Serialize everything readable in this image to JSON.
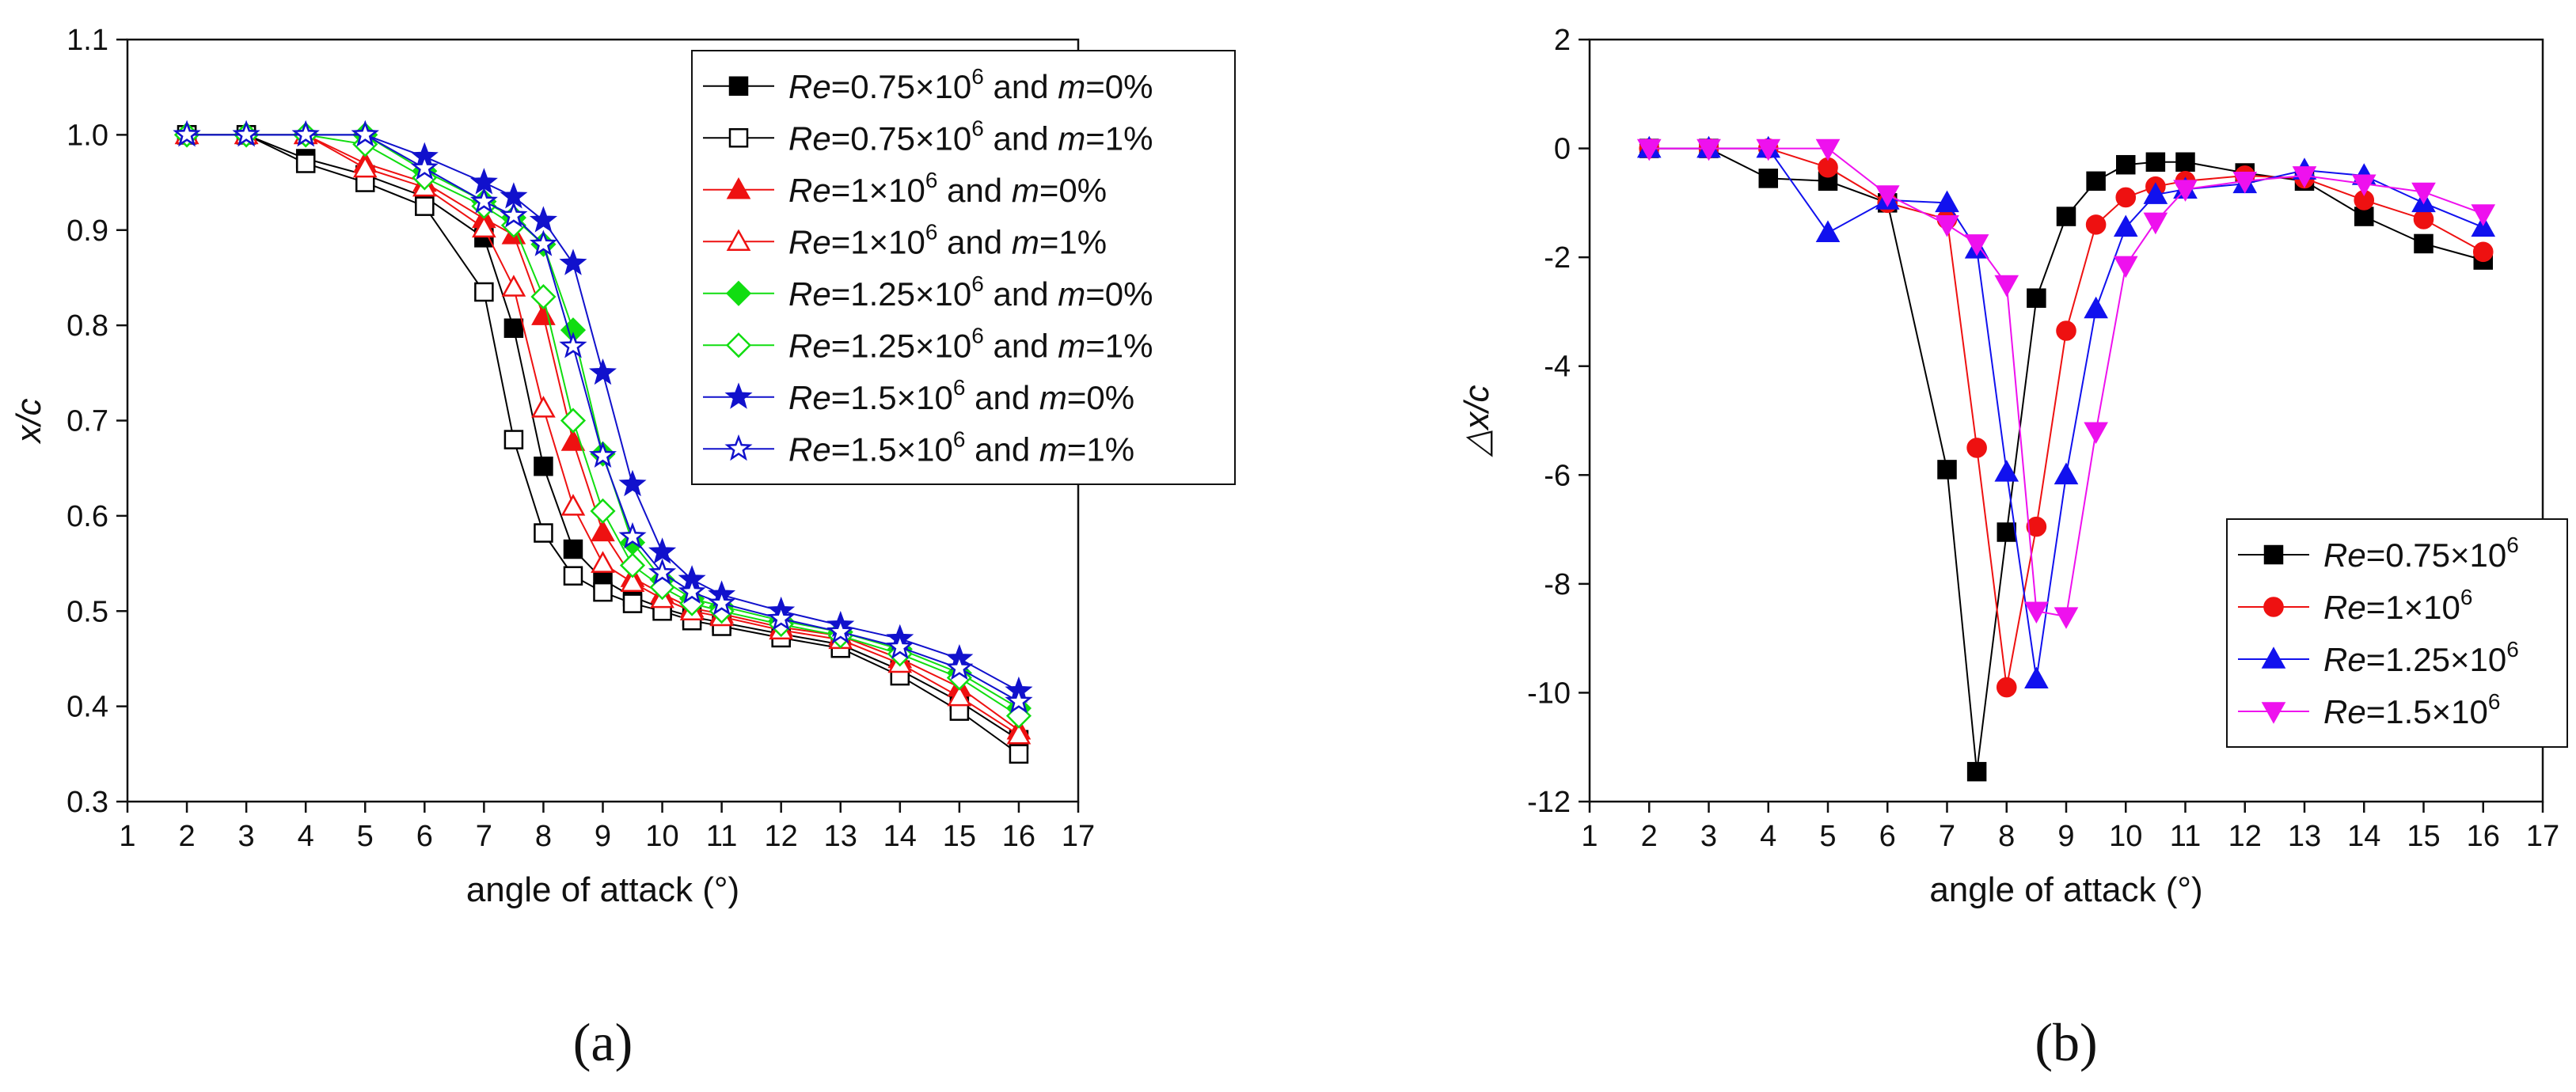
{
  "chart_data": [
    {
      "type": "line",
      "panel_label": "(a)",
      "xlabel": "angle of attack (°)",
      "ylabel": "x/c",
      "xlim": [
        1,
        17
      ],
      "ylim": [
        0.3,
        1.1
      ],
      "xticks": [
        1,
        2,
        3,
        4,
        5,
        6,
        7,
        8,
        9,
        10,
        11,
        12,
        13,
        14,
        15,
        16,
        17
      ],
      "yticks": [
        "0.3",
        "0.4",
        "0.5",
        "0.6",
        "0.7",
        "0.8",
        "0.9",
        "1.0",
        "1.1"
      ],
      "legend_position": "top-right",
      "series": [
        {
          "re": "0.75",
          "m": "0%",
          "color": "#000000",
          "marker": "square",
          "filled": true,
          "x": [
            2,
            3,
            4,
            5,
            6,
            7,
            7.5,
            8,
            8.5,
            9,
            9.5,
            10,
            10.5,
            11,
            12,
            13,
            14,
            15,
            16
          ],
          "y": [
            1.0,
            1.0,
            0.975,
            0.958,
            0.935,
            0.892,
            0.797,
            0.652,
            0.565,
            0.533,
            0.515,
            0.503,
            0.494,
            0.488,
            0.476,
            0.465,
            0.438,
            0.405,
            0.365
          ]
        },
        {
          "re": "0.75",
          "m": "1%",
          "color": "#000000",
          "marker": "square",
          "filled": false,
          "x": [
            2,
            3,
            4,
            5,
            6,
            7,
            7.5,
            8,
            8.5,
            9,
            9.5,
            10,
            10.5,
            11,
            12,
            13,
            14,
            15,
            16
          ],
          "y": [
            1.0,
            1.0,
            0.97,
            0.95,
            0.925,
            0.835,
            0.68,
            0.582,
            0.537,
            0.52,
            0.508,
            0.5,
            0.49,
            0.484,
            0.472,
            0.461,
            0.432,
            0.395,
            0.35
          ]
        },
        {
          "re": "1",
          "m": "0%",
          "color": "#ee1111",
          "marker": "triangle-up",
          "filled": true,
          "x": [
            2,
            3,
            4,
            5,
            6,
            7,
            7.5,
            8,
            8.5,
            9,
            9.5,
            10,
            10.5,
            11,
            12,
            13,
            14,
            15,
            16
          ],
          "y": [
            1.0,
            1.0,
            1.0,
            0.97,
            0.95,
            0.912,
            0.895,
            0.81,
            0.678,
            0.583,
            0.535,
            0.518,
            0.503,
            0.497,
            0.483,
            0.474,
            0.45,
            0.42,
            0.375
          ]
        },
        {
          "re": "1",
          "m": "1%",
          "color": "#ee1111",
          "marker": "triangle-up",
          "filled": false,
          "x": [
            2,
            3,
            4,
            5,
            6,
            7,
            7.5,
            8,
            8.5,
            9,
            9.5,
            10,
            10.5,
            11,
            12,
            13,
            14,
            15,
            16
          ],
          "y": [
            1.0,
            1.0,
            1.0,
            0.965,
            0.945,
            0.902,
            0.84,
            0.713,
            0.61,
            0.55,
            0.53,
            0.513,
            0.5,
            0.494,
            0.48,
            0.47,
            0.445,
            0.41,
            0.37
          ]
        },
        {
          "re": "1.25",
          "m": "0%",
          "color": "#11dd11",
          "marker": "diamond",
          "filled": true,
          "x": [
            2,
            3,
            4,
            5,
            6,
            7,
            7.5,
            8,
            8.5,
            9,
            9.5,
            10,
            10.5,
            11,
            12,
            13,
            14,
            15,
            16
          ],
          "y": [
            1.0,
            1.0,
            1.0,
            1.0,
            0.962,
            0.93,
            0.913,
            0.885,
            0.795,
            0.665,
            0.572,
            0.533,
            0.513,
            0.505,
            0.49,
            0.478,
            0.46,
            0.435,
            0.398
          ]
        },
        {
          "re": "1.25",
          "m": "1%",
          "color": "#11dd11",
          "marker": "diamond",
          "filled": false,
          "x": [
            2,
            3,
            4,
            5,
            6,
            7,
            7.5,
            8,
            8.5,
            9,
            9.5,
            10,
            10.5,
            11,
            12,
            13,
            14,
            15,
            16
          ],
          "y": [
            1.0,
            1.0,
            1.0,
            0.99,
            0.955,
            0.925,
            0.905,
            0.83,
            0.7,
            0.605,
            0.548,
            0.525,
            0.508,
            0.5,
            0.486,
            0.474,
            0.455,
            0.43,
            0.39
          ]
        },
        {
          "re": "1.5",
          "m": "0%",
          "color": "#1111cc",
          "marker": "star",
          "filled": true,
          "x": [
            2,
            3,
            4,
            5,
            6,
            7,
            7.5,
            8,
            8.5,
            9,
            9.5,
            10,
            10.5,
            11,
            12,
            13,
            14,
            15,
            16
          ],
          "y": [
            1.0,
            1.0,
            1.0,
            1.0,
            0.977,
            0.95,
            0.935,
            0.91,
            0.865,
            0.75,
            0.633,
            0.562,
            0.533,
            0.517,
            0.5,
            0.485,
            0.471,
            0.45,
            0.416
          ]
        },
        {
          "re": "1.5",
          "m": "1%",
          "color": "#1111cc",
          "marker": "star",
          "filled": false,
          "x": [
            2,
            3,
            4,
            5,
            6,
            7,
            7.5,
            8,
            8.5,
            9,
            9.5,
            10,
            10.5,
            11,
            12,
            13,
            14,
            15,
            16
          ],
          "y": [
            1.0,
            1.0,
            1.0,
            1.0,
            0.965,
            0.93,
            0.915,
            0.885,
            0.778,
            0.663,
            0.578,
            0.54,
            0.52,
            0.508,
            0.492,
            0.478,
            0.462,
            0.44,
            0.405
          ]
        }
      ]
    },
    {
      "type": "line",
      "panel_label": "(b)",
      "xlabel": "angle of attack (°)",
      "ylabel": "△x/c",
      "xlim": [
        1,
        17
      ],
      "ylim": [
        -12,
        2
      ],
      "xticks": [
        1,
        2,
        3,
        4,
        5,
        6,
        7,
        8,
        9,
        10,
        11,
        12,
        13,
        14,
        15,
        16,
        17
      ],
      "yticks": [
        "-12",
        "-10",
        "-8",
        "-6",
        "-4",
        "-2",
        "0",
        "2"
      ],
      "legend_position": "bottom-right",
      "series": [
        {
          "re": "0.75",
          "color": "#000000",
          "marker": "square",
          "filled": true,
          "x": [
            2,
            3,
            4,
            5,
            6,
            7,
            7.5,
            8,
            8.5,
            9,
            9.5,
            10,
            10.5,
            11,
            12,
            13,
            14,
            15,
            16
          ],
          "y": [
            0,
            0,
            -0.55,
            -0.6,
            -1.0,
            -5.9,
            -11.45,
            -7.05,
            -2.75,
            -1.25,
            -0.6,
            -0.3,
            -0.25,
            -0.25,
            -0.45,
            -0.6,
            -1.25,
            -1.75,
            -2.05
          ]
        },
        {
          "re": "1",
          "color": "#ee1111",
          "marker": "circle",
          "filled": true,
          "x": [
            2,
            3,
            4,
            5,
            6,
            7,
            7.5,
            8,
            8.5,
            9,
            9.5,
            10,
            10.5,
            11,
            12,
            13,
            14,
            15,
            16
          ],
          "y": [
            0,
            0,
            0,
            -0.35,
            -1.0,
            -1.3,
            -5.5,
            -9.9,
            -6.95,
            -3.35,
            -1.4,
            -0.9,
            -0.7,
            -0.6,
            -0.5,
            -0.55,
            -0.95,
            -1.3,
            -1.9
          ]
        },
        {
          "re": "1.25",
          "color": "#1111ee",
          "marker": "triangle-up",
          "filled": true,
          "x": [
            2,
            3,
            4,
            5,
            6,
            7,
            7.5,
            8,
            8.5,
            9,
            9.5,
            10,
            10.5,
            11,
            12,
            13,
            14,
            15,
            16
          ],
          "y": [
            0,
            0,
            0,
            -1.55,
            -0.95,
            -1.0,
            -1.85,
            -5.95,
            -9.75,
            -6.0,
            -2.95,
            -1.45,
            -0.85,
            -0.75,
            -0.65,
            -0.4,
            -0.5,
            -1.0,
            -1.45
          ]
        },
        {
          "re": "1.5",
          "color": "#ee11ee",
          "marker": "triangle-down",
          "filled": true,
          "x": [
            2,
            3,
            4,
            5,
            6,
            7,
            7.5,
            8,
            8.5,
            9,
            9.5,
            10,
            10.5,
            11,
            12,
            13,
            14,
            15,
            16
          ],
          "y": [
            0,
            0,
            0,
            0,
            -0.85,
            -1.4,
            -1.75,
            -2.5,
            -8.5,
            -8.6,
            -5.2,
            -2.15,
            -1.35,
            -0.75,
            -0.6,
            -0.5,
            -0.65,
            -0.8,
            -1.2
          ]
        }
      ]
    }
  ]
}
